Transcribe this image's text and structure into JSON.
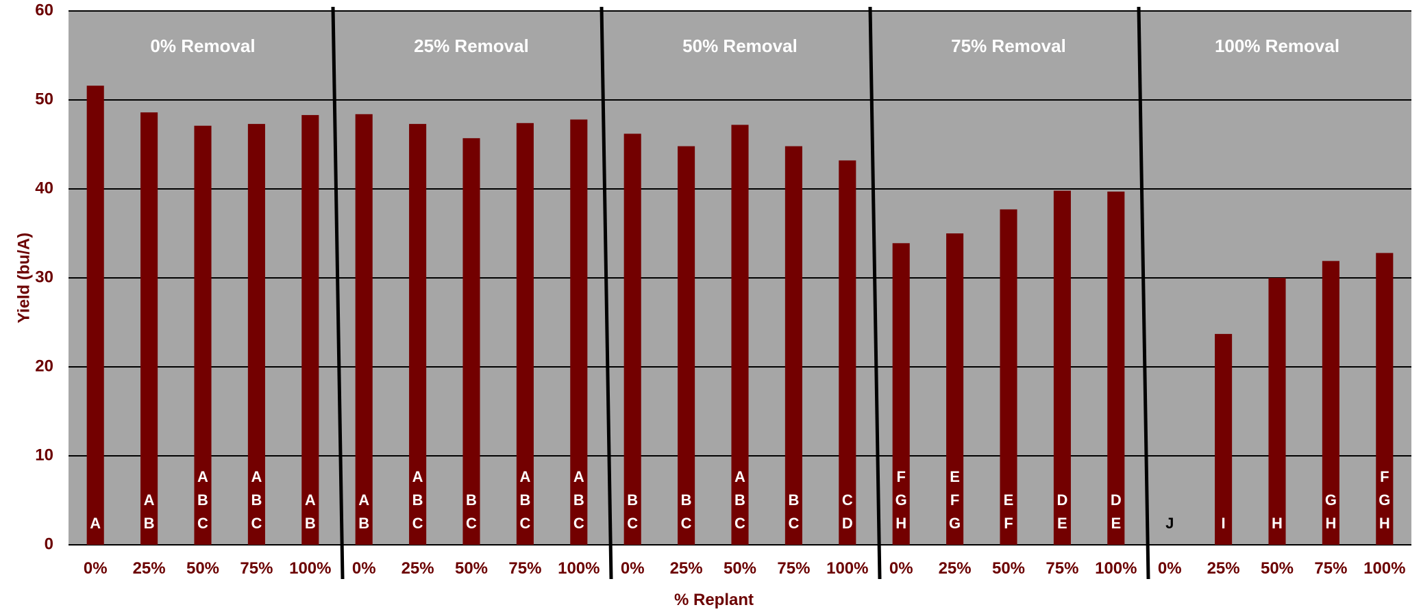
{
  "chart_data": {
    "type": "bar",
    "title": "",
    "xlabel": "% Replant",
    "ylabel": "Yield (bu/A)",
    "ylim": [
      0,
      60
    ],
    "yticks": [
      0,
      10,
      20,
      30,
      40,
      50,
      60
    ],
    "grid": true,
    "legend": "none",
    "colors": {
      "bar": "#730000",
      "plot_background": "#a6a6a6",
      "axis_text": "#6b0000",
      "grid": "#000000",
      "separator": "#000000",
      "group_label": "#ffffff",
      "letter_on_bar": "#ffffff",
      "letter_off_bar": "#000000"
    },
    "groups": [
      {
        "label": "0% Removal",
        "categories": [
          "0%",
          "25%",
          "50%",
          "75%",
          "100%"
        ],
        "values": [
          51.6,
          48.6,
          47.1,
          47.3,
          48.3
        ],
        "letters": [
          [
            "A"
          ],
          [
            "A",
            "B"
          ],
          [
            "A",
            "B",
            "C"
          ],
          [
            "A",
            "B",
            "C"
          ],
          [
            "A",
            "B"
          ]
        ]
      },
      {
        "label": "25% Removal",
        "categories": [
          "0%",
          "25%",
          "50%",
          "75%",
          "100%"
        ],
        "values": [
          48.4,
          47.3,
          45.7,
          47.4,
          47.8
        ],
        "letters": [
          [
            "A",
            "B"
          ],
          [
            "A",
            "B",
            "C"
          ],
          [
            "B",
            "C"
          ],
          [
            "A",
            "B",
            "C"
          ],
          [
            "A",
            "B",
            "C"
          ]
        ]
      },
      {
        "label": "50% Removal",
        "categories": [
          "0%",
          "25%",
          "50%",
          "75%",
          "100%"
        ],
        "values": [
          46.2,
          44.8,
          47.2,
          44.8,
          43.2
        ],
        "letters": [
          [
            "B",
            "C"
          ],
          [
            "B",
            "C"
          ],
          [
            "A",
            "B",
            "C"
          ],
          [
            "B",
            "C"
          ],
          [
            "C",
            "D"
          ]
        ]
      },
      {
        "label": "75% Removal",
        "categories": [
          "0%",
          "25%",
          "50%",
          "75%",
          "100%"
        ],
        "values": [
          33.9,
          35.0,
          37.7,
          39.8,
          39.7
        ],
        "letters": [
          [
            "F",
            "G",
            "H"
          ],
          [
            "E",
            "F",
            "G"
          ],
          [
            "E",
            "F"
          ],
          [
            "D",
            "E"
          ],
          [
            "D",
            "E"
          ]
        ]
      },
      {
        "label": "100% Removal",
        "categories": [
          "0%",
          "25%",
          "50%",
          "75%",
          "100%"
        ],
        "values": [
          0,
          23.7,
          30.0,
          31.9,
          32.8
        ],
        "letters": [
          [
            "J"
          ],
          [
            "I"
          ],
          [
            "H"
          ],
          [
            "G",
            "H"
          ],
          [
            "F",
            "G",
            "H"
          ]
        ]
      }
    ]
  }
}
